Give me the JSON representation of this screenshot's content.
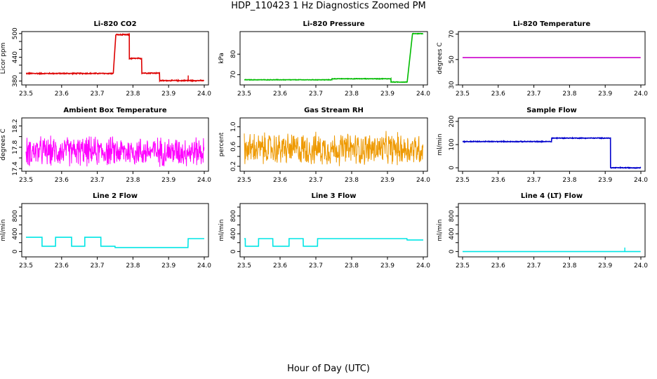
{
  "page": {
    "title": "HDP_110423  1 Hz Diagnostics Zoomed PM",
    "xlabel": "Hour of Day (UTC)"
  },
  "chart_data": [
    {
      "type": "line",
      "title": "Li-820 CO2",
      "ylabel": "Licor ppm",
      "color": "#dd0000",
      "xlim": [
        23.5,
        24.0
      ],
      "ylim": [
        370,
        505
      ],
      "yticks": [
        380,
        400,
        420,
        440,
        460,
        480,
        500
      ],
      "ytick_labels": [
        "380",
        "",
        "",
        "440",
        "",
        "",
        "500"
      ],
      "xticks": [
        23.5,
        23.6,
        23.7,
        23.8,
        23.9,
        24.0
      ],
      "segments": [
        [
          23.5,
          23.745,
          399
        ],
        [
          23.752,
          23.79,
          497
        ],
        [
          23.79,
          23.825,
          437
        ],
        [
          23.825,
          23.875,
          400
        ],
        [
          23.875,
          24.0,
          381
        ]
      ],
      "noise": 1.5,
      "spikes": [
        [
          23.955,
          394
        ]
      ]
    },
    {
      "type": "line",
      "title": "Li-820 Pressure",
      "ylabel": "kPa",
      "color": "#00bb00",
      "xlim": [
        23.5,
        24.0
      ],
      "ylim": [
        65,
        91
      ],
      "yticks": [
        70,
        80
      ],
      "ytick_labels": [
        "70",
        "80"
      ],
      "xticks": [
        23.5,
        23.6,
        23.7,
        23.8,
        23.9,
        24.0
      ],
      "segments": [
        [
          23.5,
          23.745,
          67.5
        ],
        [
          23.745,
          23.91,
          68.0
        ],
        [
          23.91,
          23.955,
          66.4
        ],
        [
          23.97,
          24.0,
          90.0
        ]
      ],
      "noise": 0.15,
      "spikes": []
    },
    {
      "type": "line",
      "title": "Li-820 Temperature",
      "ylabel": "degrees C",
      "color": "#cc00cc",
      "xlim": [
        23.5,
        24.0
      ],
      "ylim": [
        30,
        72
      ],
      "yticks": [
        30,
        50,
        70
      ],
      "ytick_labels": [
        "30",
        "50",
        "70"
      ],
      "xticks": [
        23.5,
        23.6,
        23.7,
        23.8,
        23.9,
        24.0
      ],
      "segments": [
        [
          23.5,
          24.0,
          51.5
        ]
      ],
      "noise": 0,
      "spikes": []
    },
    {
      "type": "line",
      "title": "Ambient Box Temperature",
      "ylabel": "degrees C",
      "color": "#ff00ff",
      "xlim": [
        23.5,
        24.0
      ],
      "ylim": [
        17.35,
        18.35
      ],
      "yticks": [
        17.4,
        17.6,
        17.8,
        18.0,
        18.2
      ],
      "ytick_labels": [
        "17.4",
        "",
        "17.8",
        "",
        "18.2"
      ],
      "xticks": [
        23.5,
        23.6,
        23.7,
        23.8,
        23.9,
        24.0
      ],
      "segments": [
        [
          23.5,
          24.0,
          17.72
        ]
      ],
      "noise": 0.32,
      "spikes": []
    },
    {
      "type": "line",
      "title": "Gas Stream RH",
      "ylabel": "percent",
      "color": "#ee9900",
      "xlim": [
        23.5,
        24.0
      ],
      "ylim": [
        0.1,
        1.18
      ],
      "yticks": [
        0.2,
        0.4,
        0.6,
        0.8,
        1.0
      ],
      "ytick_labels": [
        "0.2",
        "",
        "0.6",
        "",
        "1.0"
      ],
      "xticks": [
        23.5,
        23.6,
        23.7,
        23.8,
        23.9,
        24.0
      ],
      "segments": [
        [
          23.5,
          24.0,
          0.55
        ]
      ],
      "noise": 0.38,
      "spikes": []
    },
    {
      "type": "line",
      "title": "Sample Flow",
      "ylabel": "ml/min",
      "color": "#0000cc",
      "xlim": [
        23.5,
        24.0
      ],
      "ylim": [
        -15,
        215
      ],
      "yticks": [
        0,
        100,
        200
      ],
      "ytick_labels": [
        "0",
        "100",
        "200"
      ],
      "xticks": [
        23.5,
        23.6,
        23.7,
        23.8,
        23.9,
        24.0
      ],
      "segments": [
        [
          23.5,
          23.75,
          113
        ],
        [
          23.75,
          23.915,
          128
        ],
        [
          23.915,
          24.0,
          0
        ]
      ],
      "noise": 2,
      "spikes": []
    },
    {
      "type": "line",
      "title": "Line 2 Flow",
      "ylabel": "ml/min",
      "color": "#00e5e5",
      "xlim": [
        23.5,
        24.0
      ],
      "ylim": [
        -120,
        1080
      ],
      "yticks": [
        0,
        200,
        400,
        600,
        800,
        1000
      ],
      "ytick_labels": [
        "0",
        "",
        "400",
        "",
        "800",
        ""
      ],
      "xticks": [
        23.5,
        23.6,
        23.7,
        23.8,
        23.9,
        24.0
      ],
      "segments": [
        [
          23.5,
          23.545,
          320
        ],
        [
          23.545,
          23.583,
          120
        ],
        [
          23.583,
          23.628,
          320
        ],
        [
          23.628,
          23.665,
          120
        ],
        [
          23.665,
          23.71,
          320
        ],
        [
          23.71,
          23.75,
          120
        ],
        [
          23.75,
          23.955,
          90
        ],
        [
          23.955,
          24.0,
          290
        ]
      ],
      "noise": 0,
      "spikes": []
    },
    {
      "type": "line",
      "title": "Line 3 Flow",
      "ylabel": "ml/min",
      "color": "#00e5e5",
      "xlim": [
        23.5,
        24.0
      ],
      "ylim": [
        -120,
        1080
      ],
      "yticks": [
        0,
        200,
        400,
        600,
        800,
        1000
      ],
      "ytick_labels": [
        "0",
        "",
        "400",
        "",
        "800",
        ""
      ],
      "xticks": [
        23.5,
        23.6,
        23.7,
        23.8,
        23.9,
        24.0
      ],
      "segments": [
        [
          23.5,
          23.503,
          290
        ],
        [
          23.503,
          23.54,
          120
        ],
        [
          23.54,
          23.58,
          290
        ],
        [
          23.58,
          23.625,
          120
        ],
        [
          23.625,
          23.665,
          290
        ],
        [
          23.665,
          23.705,
          120
        ],
        [
          23.705,
          23.955,
          290
        ],
        [
          23.955,
          24.0,
          260
        ]
      ],
      "noise": 0,
      "spikes": []
    },
    {
      "type": "line",
      "title": "Line 4 (LT) Flow",
      "ylabel": "ml/min",
      "color": "#00e5e5",
      "xlim": [
        23.5,
        24.0
      ],
      "ylim": [
        -120,
        1080
      ],
      "yticks": [
        0,
        200,
        400,
        600,
        800,
        1000
      ],
      "ytick_labels": [
        "0",
        "",
        "400",
        "",
        "800",
        ""
      ],
      "xticks": [
        23.5,
        23.6,
        23.7,
        23.8,
        23.9,
        24.0
      ],
      "segments": [
        [
          23.5,
          24.0,
          0
        ]
      ],
      "noise": 0,
      "spikes": [
        [
          23.955,
          90
        ]
      ]
    }
  ]
}
